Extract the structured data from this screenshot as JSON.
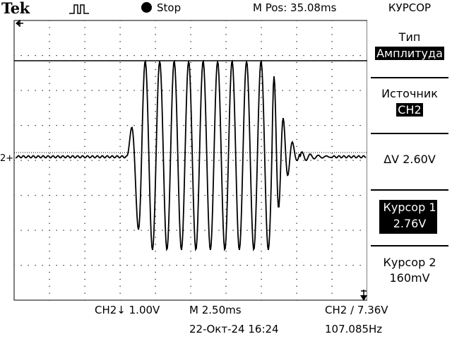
{
  "header": {
    "brand": "Tek",
    "run_state": "Stop",
    "position": "M Pos: 35.08ms",
    "menu_title": "КУРСОР"
  },
  "menu": {
    "type_label": "Тип",
    "type_value": "Амплитуда",
    "source_label": "Источник",
    "source_value": "CH2",
    "delta": "ΔV 2.60V",
    "cursor1_label": "Курсор 1",
    "cursor1_value": "2.76V",
    "cursor2_label": "Курсор 2",
    "cursor2_value": "160mV"
  },
  "footer": {
    "ch_scale": "CH2↓ 1.00V",
    "timebase": "M 2.50ms",
    "trigger": "CH2 ∕ 7.36V",
    "datetime": "22-Окт-24 16:24",
    "frequency": "107.085Hz"
  },
  "markers": {
    "channel": "2+"
  },
  "colors": {
    "trace": "#000000",
    "grid": "#000000",
    "background": "#ffffff"
  },
  "icons": {
    "trigger_status": "pulse-waveform-icon",
    "stop": "filled-circle-icon",
    "trigger_position": "trigger-arrow-icon"
  }
}
